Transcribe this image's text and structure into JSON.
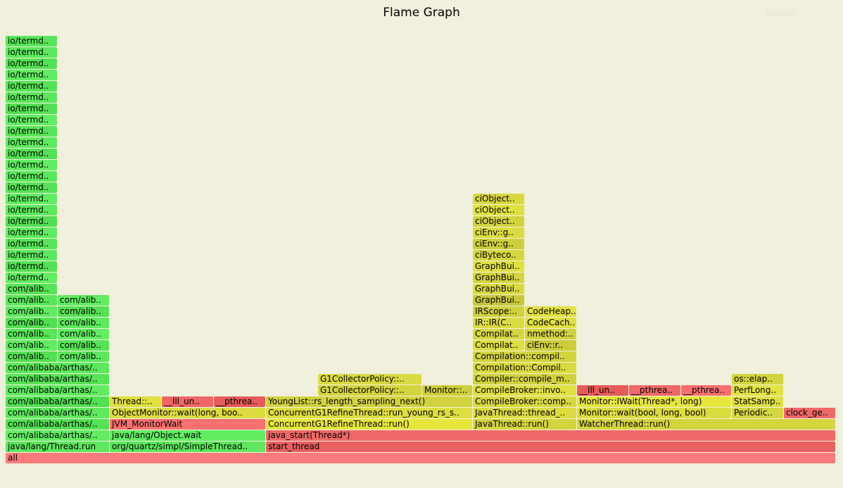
{
  "header": {
    "title": "Flame Graph",
    "search_label": "Search"
  },
  "chart_data": {
    "type": "flame",
    "x_unit": "samples",
    "total_samples": 590,
    "frames": [
      {
        "label": "all",
        "start": 0,
        "width": 590,
        "depth": 0,
        "color": "#fa7b7b"
      },
      {
        "label": "java/lang/Thread.run",
        "start": 0,
        "width": 74,
        "depth": 1,
        "color": "#5ee65e"
      },
      {
        "label": "com/alibaba/arthas/..",
        "start": 0,
        "width": 74,
        "depth": 2,
        "color": "#62ed62"
      },
      {
        "label": "com/alibaba/arthas/..",
        "start": 0,
        "width": 74,
        "depth": 3,
        "color": "#55e155"
      },
      {
        "label": "com/alibaba/arthas/..",
        "start": 0,
        "width": 74,
        "depth": 4,
        "color": "#5fe95f"
      },
      {
        "label": "com/alibaba/arthas/..",
        "start": 0,
        "width": 74,
        "depth": 5,
        "color": "#52df52"
      },
      {
        "label": "com/alibaba/arthas/..",
        "start": 0,
        "width": 74,
        "depth": 6,
        "color": "#60eb60"
      },
      {
        "label": "com/alibaba/arthas/..",
        "start": 0,
        "width": 74,
        "depth": 7,
        "color": "#57e457"
      },
      {
        "label": "com/alibaba/arthas/..",
        "start": 0,
        "width": 74,
        "depth": 8,
        "color": "#5ce85c"
      },
      {
        "label": "com/alib..",
        "start": 0,
        "width": 37,
        "depth": 9,
        "color": "#54e054"
      },
      {
        "label": "com/alib..",
        "start": 37,
        "width": 37,
        "depth": 9,
        "color": "#5ee75e"
      },
      {
        "label": "com/alib..",
        "start": 0,
        "width": 37,
        "depth": 10,
        "color": "#61ec61"
      },
      {
        "label": "com/alib..",
        "start": 37,
        "width": 37,
        "depth": 10,
        "color": "#56e256"
      },
      {
        "label": "com/alib..",
        "start": 0,
        "width": 37,
        "depth": 11,
        "color": "#58e558"
      },
      {
        "label": "com/alib..",
        "start": 37,
        "width": 37,
        "depth": 11,
        "color": "#62ed62"
      },
      {
        "label": "com/alib..",
        "start": 0,
        "width": 37,
        "depth": 12,
        "color": "#53e053"
      },
      {
        "label": "com/alib..",
        "start": 37,
        "width": 37,
        "depth": 12,
        "color": "#5de85d"
      },
      {
        "label": "com/alib..",
        "start": 0,
        "width": 37,
        "depth": 13,
        "color": "#60ea60"
      },
      {
        "label": "com/alib..",
        "start": 37,
        "width": 37,
        "depth": 13,
        "color": "#55e155"
      },
      {
        "label": "com/alib..",
        "start": 0,
        "width": 37,
        "depth": 14,
        "color": "#5ae65a"
      },
      {
        "label": "com/alib..",
        "start": 37,
        "width": 37,
        "depth": 14,
        "color": "#61ec61"
      },
      {
        "label": "com/alib..",
        "start": 0,
        "width": 37,
        "depth": 15,
        "color": "#57e357"
      },
      {
        "label": "io/termd..",
        "start": 0,
        "width": 37,
        "depth": 16,
        "color": "#62ed62"
      },
      {
        "label": "io/termd..",
        "start": 0,
        "width": 37,
        "depth": 17,
        "color": "#54e054"
      },
      {
        "label": "io/termd..",
        "start": 0,
        "width": 37,
        "depth": 18,
        "color": "#5ee75e"
      },
      {
        "label": "io/termd..",
        "start": 0,
        "width": 37,
        "depth": 19,
        "color": "#59e559"
      },
      {
        "label": "io/termd..",
        "start": 0,
        "width": 37,
        "depth": 20,
        "color": "#60eb60"
      },
      {
        "label": "io/termd..",
        "start": 0,
        "width": 37,
        "depth": 21,
        "color": "#53df53"
      },
      {
        "label": "io/termd..",
        "start": 0,
        "width": 37,
        "depth": 22,
        "color": "#5de85d"
      },
      {
        "label": "io/termd..",
        "start": 0,
        "width": 37,
        "depth": 23,
        "color": "#62ed62"
      },
      {
        "label": "io/termd..",
        "start": 0,
        "width": 37,
        "depth": 24,
        "color": "#56e256"
      },
      {
        "label": "io/termd..",
        "start": 0,
        "width": 37,
        "depth": 25,
        "color": "#5be75b"
      },
      {
        "label": "io/termd..",
        "start": 0,
        "width": 37,
        "depth": 26,
        "color": "#61ec61"
      },
      {
        "label": "io/termd..",
        "start": 0,
        "width": 37,
        "depth": 27,
        "color": "#55e155"
      },
      {
        "label": "io/termd..",
        "start": 0,
        "width": 37,
        "depth": 28,
        "color": "#5fe95f"
      },
      {
        "label": "io/termd..",
        "start": 0,
        "width": 37,
        "depth": 29,
        "color": "#58e458"
      },
      {
        "label": "io/termd..",
        "start": 0,
        "width": 37,
        "depth": 30,
        "color": "#62ed62"
      },
      {
        "label": "io/termd..",
        "start": 0,
        "width": 37,
        "depth": 31,
        "color": "#54e054"
      },
      {
        "label": "io/termd..",
        "start": 0,
        "width": 37,
        "depth": 32,
        "color": "#5ee75e"
      },
      {
        "label": "io/termd..",
        "start": 0,
        "width": 37,
        "depth": 33,
        "color": "#57e357"
      },
      {
        "label": "io/termd..",
        "start": 0,
        "width": 37,
        "depth": 34,
        "color": "#61ec61"
      },
      {
        "label": "io/termd..",
        "start": 0,
        "width": 37,
        "depth": 35,
        "color": "#55e155"
      },
      {
        "label": "io/termd..",
        "start": 0,
        "width": 37,
        "depth": 36,
        "color": "#5de85d"
      },
      {
        "label": "io/termd..",
        "start": 0,
        "width": 37,
        "depth": 37,
        "color": "#59e559"
      },
      {
        "label": "org/quartz/simpl/SimpleThread..",
        "start": 74,
        "width": 111,
        "depth": 1,
        "color": "#5ee65e"
      },
      {
        "label": "java/lang/Object.wait",
        "start": 74,
        "width": 111,
        "depth": 2,
        "color": "#62ed62"
      },
      {
        "label": "JVM_MonitorWait",
        "start": 74,
        "width": 111,
        "depth": 3,
        "color": "#fa7070"
      },
      {
        "label": "ObjectMonitor::wait(long, boo..",
        "start": 74,
        "width": 111,
        "depth": 4,
        "color": "#dcdc42"
      },
      {
        "label": "Thread::..",
        "start": 74,
        "width": 37,
        "depth": 5,
        "color": "#e0e03e"
      },
      {
        "label": "__lll_un..",
        "start": 111,
        "width": 37,
        "depth": 5,
        "color": "#f06666"
      },
      {
        "label": "__pthrea..",
        "start": 148,
        "width": 37,
        "depth": 5,
        "color": "#e65a5a"
      },
      {
        "label": "start_thread",
        "start": 185,
        "width": 405,
        "depth": 1,
        "color": "#e86060"
      },
      {
        "label": "java_start(Thread*)",
        "start": 185,
        "width": 405,
        "depth": 2,
        "color": "#f06868"
      },
      {
        "label": "ConcurrentG1RefineThread::run()",
        "start": 185,
        "width": 147,
        "depth": 3,
        "color": "#e6e63c"
      },
      {
        "label": "ConcurrentG1RefineThread::run_young_rs_s..",
        "start": 185,
        "width": 147,
        "depth": 4,
        "color": "#dede40"
      },
      {
        "label": "YoungList::rs_length_sampling_next()",
        "start": 185,
        "width": 147,
        "depth": 5,
        "color": "#d2d240"
      },
      {
        "label": "G1CollectorPolicy::..",
        "start": 222,
        "width": 74,
        "depth": 6,
        "color": "#d4d43e"
      },
      {
        "label": "Monitor::..",
        "start": 296,
        "width": 36,
        "depth": 6,
        "color": "#cece3c"
      },
      {
        "label": "G1CollectorPolicy::..",
        "start": 222,
        "width": 74,
        "depth": 7,
        "color": "#dada42"
      },
      {
        "label": "JavaThread::run()",
        "start": 332,
        "width": 74,
        "depth": 3,
        "color": "#d4d43e"
      },
      {
        "label": "JavaThread::thread_..",
        "start": 332,
        "width": 74,
        "depth": 4,
        "color": "#dcdc40"
      },
      {
        "label": "CompileBroker::comp..",
        "start": 332,
        "width": 74,
        "depth": 5,
        "color": "#d8d83e"
      },
      {
        "label": "CompileBroker::invo..",
        "start": 332,
        "width": 74,
        "depth": 6,
        "color": "#e0e042"
      },
      {
        "label": "Compiler::compile_m..",
        "start": 332,
        "width": 74,
        "depth": 7,
        "color": "#d2d23e"
      },
      {
        "label": "Compilation::Compil..",
        "start": 332,
        "width": 74,
        "depth": 8,
        "color": "#dada40"
      },
      {
        "label": "Compilation::compil..",
        "start": 332,
        "width": 74,
        "depth": 9,
        "color": "#d4d43c"
      },
      {
        "label": "Compilat..",
        "start": 332,
        "width": 37,
        "depth": 10,
        "color": "#dede42"
      },
      {
        "label": "ciEnv::r..",
        "start": 369,
        "width": 37,
        "depth": 10,
        "color": "#cccc3c"
      },
      {
        "label": "Compilat..",
        "start": 332,
        "width": 37,
        "depth": 11,
        "color": "#d6d640"
      },
      {
        "label": "nmethod:..",
        "start": 369,
        "width": 37,
        "depth": 11,
        "color": "#d2d23e"
      },
      {
        "label": "IR::IR(C..",
        "start": 332,
        "width": 37,
        "depth": 12,
        "color": "#dcdc42"
      },
      {
        "label": "CodeCach..",
        "start": 369,
        "width": 37,
        "depth": 12,
        "color": "#e0e040"
      },
      {
        "label": "IRScope:..",
        "start": 332,
        "width": 37,
        "depth": 13,
        "color": "#d0d03e"
      },
      {
        "label": "CodeHeap..",
        "start": 369,
        "width": 37,
        "depth": 13,
        "color": "#e2e242"
      },
      {
        "label": "GraphBui..",
        "start": 332,
        "width": 37,
        "depth": 14,
        "color": "#c8c83a"
      },
      {
        "label": "GraphBui..",
        "start": 332,
        "width": 37,
        "depth": 15,
        "color": "#dada40"
      },
      {
        "label": "GraphBui..",
        "start": 332,
        "width": 37,
        "depth": 16,
        "color": "#d4d43e"
      },
      {
        "label": "GraphBui..",
        "start": 332,
        "width": 37,
        "depth": 17,
        "color": "#e0e042"
      },
      {
        "label": "ciByteco..",
        "start": 332,
        "width": 37,
        "depth": 18,
        "color": "#d6d640"
      },
      {
        "label": "ciEnv::g..",
        "start": 332,
        "width": 37,
        "depth": 19,
        "color": "#cece3c"
      },
      {
        "label": "ciEnv::g..",
        "start": 332,
        "width": 37,
        "depth": 20,
        "color": "#dcdc42"
      },
      {
        "label": "ciObject..",
        "start": 332,
        "width": 37,
        "depth": 21,
        "color": "#d2d23e"
      },
      {
        "label": "ciObject..",
        "start": 332,
        "width": 37,
        "depth": 22,
        "color": "#e0e042"
      },
      {
        "label": "ciObject..",
        "start": 332,
        "width": 37,
        "depth": 23,
        "color": "#d8d840"
      },
      {
        "label": "WatcherThread::run()",
        "start": 406,
        "width": 184,
        "depth": 3,
        "color": "#d4d43e"
      },
      {
        "label": "Monitor::wait(bool, long, bool)",
        "start": 406,
        "width": 110,
        "depth": 4,
        "color": "#dcdc40"
      },
      {
        "label": "Monitor::IWait(Thread*, long)",
        "start": 406,
        "width": 110,
        "depth": 5,
        "color": "#e6e63c"
      },
      {
        "label": "__lll_un..",
        "start": 406,
        "width": 37,
        "depth": 6,
        "color": "#e65a5a"
      },
      {
        "label": "__pthrea..",
        "start": 443,
        "width": 37,
        "depth": 6,
        "color": "#f06868"
      },
      {
        "label": "__pthrea..",
        "start": 480,
        "width": 36,
        "depth": 6,
        "color": "#fa7070"
      },
      {
        "label": "Periodic..",
        "start": 516,
        "width": 37,
        "depth": 4,
        "color": "#d6d640"
      },
      {
        "label": "StatSamp..",
        "start": 516,
        "width": 37,
        "depth": 5,
        "color": "#dede42"
      },
      {
        "label": "PerfLong..",
        "start": 516,
        "width": 37,
        "depth": 6,
        "color": "#e2e242"
      },
      {
        "label": "os::elap..",
        "start": 516,
        "width": 37,
        "depth": 7,
        "color": "#d4d43e"
      },
      {
        "label": "clock_ge..",
        "start": 553,
        "width": 37,
        "depth": 4,
        "color": "#f06868"
      }
    ]
  }
}
